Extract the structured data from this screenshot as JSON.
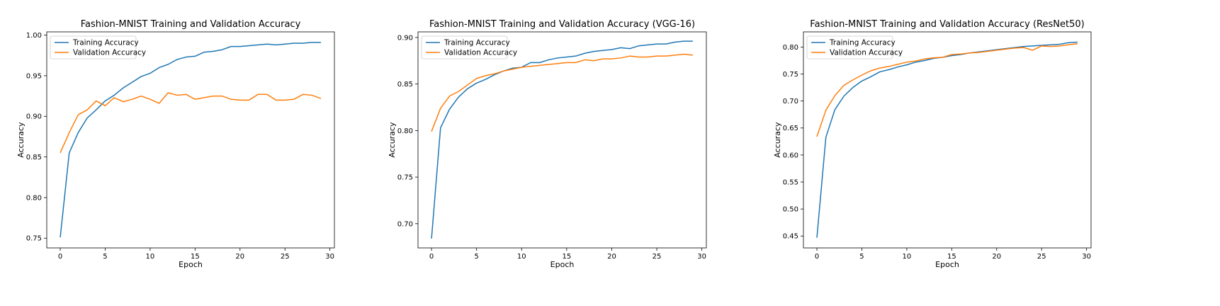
{
  "colors": {
    "training": "#1f77b4",
    "validation": "#ff7f0e"
  },
  "chart_data": [
    {
      "type": "line",
      "title": "Fashion-MNIST Training and Validation Accuracy",
      "xlabel": "Epoch",
      "ylabel": "Accuracy",
      "xlim": [
        -1.5,
        30.5
      ],
      "ylim": [
        0.738,
        1.004
      ],
      "xticks": [
        0,
        5,
        10,
        15,
        20,
        25,
        30
      ],
      "yticks": [
        0.75,
        0.8,
        0.85,
        0.9,
        0.95,
        1.0
      ],
      "ytick_labels": [
        "0.75",
        "0.80",
        "0.85",
        "0.90",
        "0.95",
        "1.00"
      ],
      "legend_position": "top-left",
      "x": [
        0,
        1,
        2,
        3,
        4,
        5,
        6,
        7,
        8,
        9,
        10,
        11,
        12,
        13,
        14,
        15,
        16,
        17,
        18,
        19,
        20,
        21,
        22,
        23,
        24,
        25,
        26,
        27,
        28,
        29
      ],
      "series": [
        {
          "name": "Training Accuracy",
          "color_key": "training",
          "values": [
            0.751,
            0.855,
            0.88,
            0.898,
            0.908,
            0.919,
            0.926,
            0.935,
            0.942,
            0.949,
            0.953,
            0.96,
            0.964,
            0.97,
            0.973,
            0.974,
            0.979,
            0.98,
            0.982,
            0.986,
            0.986,
            0.987,
            0.988,
            0.989,
            0.988,
            0.989,
            0.99,
            0.99,
            0.991,
            0.991
          ]
        },
        {
          "name": "Validation Accuracy",
          "color_key": "validation",
          "values": [
            0.855,
            0.88,
            0.902,
            0.908,
            0.919,
            0.913,
            0.923,
            0.918,
            0.921,
            0.925,
            0.921,
            0.916,
            0.929,
            0.926,
            0.927,
            0.921,
            0.923,
            0.925,
            0.925,
            0.921,
            0.92,
            0.92,
            0.927,
            0.927,
            0.92,
            0.92,
            0.921,
            0.927,
            0.926,
            0.922
          ]
        }
      ]
    },
    {
      "type": "line",
      "title": "Fashion-MNIST Training and Validation Accuracy (VGG-16)",
      "xlabel": "Epoch",
      "ylabel": "Accuracy",
      "xlim": [
        -1.5,
        30.5
      ],
      "ylim": [
        0.674,
        0.906
      ],
      "xticks": [
        0,
        5,
        10,
        15,
        20,
        25,
        30
      ],
      "yticks": [
        0.7,
        0.75,
        0.8,
        0.85,
        0.9
      ],
      "ytick_labels": [
        "0.70",
        "0.75",
        "0.80",
        "0.85",
        "0.90"
      ],
      "legend_position": "top-left",
      "x": [
        0,
        1,
        2,
        3,
        4,
        5,
        6,
        7,
        8,
        9,
        10,
        11,
        12,
        13,
        14,
        15,
        16,
        17,
        18,
        19,
        20,
        21,
        22,
        23,
        24,
        25,
        26,
        27,
        28,
        29
      ],
      "series": [
        {
          "name": "Training Accuracy",
          "color_key": "training",
          "values": [
            0.684,
            0.803,
            0.823,
            0.836,
            0.845,
            0.851,
            0.855,
            0.86,
            0.864,
            0.867,
            0.868,
            0.873,
            0.873,
            0.876,
            0.878,
            0.879,
            0.88,
            0.883,
            0.885,
            0.886,
            0.887,
            0.889,
            0.888,
            0.891,
            0.892,
            0.893,
            0.893,
            0.895,
            0.896,
            0.896
          ]
        },
        {
          "name": "Validation Accuracy",
          "color_key": "validation",
          "values": [
            0.799,
            0.824,
            0.837,
            0.842,
            0.849,
            0.856,
            0.859,
            0.861,
            0.864,
            0.866,
            0.868,
            0.869,
            0.87,
            0.871,
            0.872,
            0.873,
            0.873,
            0.876,
            0.875,
            0.877,
            0.877,
            0.878,
            0.88,
            0.879,
            0.879,
            0.88,
            0.88,
            0.881,
            0.882,
            0.881
          ]
        }
      ]
    },
    {
      "type": "line",
      "title": "Fashion-MNIST Training and Validation Accuracy (ResNet50)",
      "xlabel": "Epoch",
      "ylabel": "Accuracy",
      "xlim": [
        -1.5,
        30.5
      ],
      "ylim": [
        0.428,
        0.828
      ],
      "xticks": [
        0,
        5,
        10,
        15,
        20,
        25,
        30
      ],
      "yticks": [
        0.45,
        0.5,
        0.55,
        0.6,
        0.65,
        0.7,
        0.75,
        0.8
      ],
      "ytick_labels": [
        "0.45",
        "0.50",
        "0.55",
        "0.60",
        "0.65",
        "0.70",
        "0.75",
        "0.80"
      ],
      "legend_position": "top-left",
      "x": [
        0,
        1,
        2,
        3,
        4,
        5,
        6,
        7,
        8,
        9,
        10,
        11,
        12,
        13,
        14,
        15,
        16,
        17,
        18,
        19,
        20,
        21,
        22,
        23,
        24,
        25,
        26,
        27,
        28,
        29
      ],
      "series": [
        {
          "name": "Training Accuracy",
          "color_key": "training",
          "values": [
            0.447,
            0.633,
            0.684,
            0.709,
            0.725,
            0.737,
            0.745,
            0.754,
            0.758,
            0.763,
            0.767,
            0.772,
            0.775,
            0.779,
            0.781,
            0.784,
            0.786,
            0.789,
            0.791,
            0.793,
            0.795,
            0.797,
            0.799,
            0.801,
            0.802,
            0.803,
            0.804,
            0.805,
            0.808,
            0.809
          ]
        },
        {
          "name": "Validation Accuracy",
          "color_key": "validation",
          "values": [
            0.634,
            0.683,
            0.71,
            0.729,
            0.739,
            0.748,
            0.756,
            0.761,
            0.764,
            0.768,
            0.772,
            0.774,
            0.778,
            0.78,
            0.781,
            0.786,
            0.787,
            0.789,
            0.79,
            0.792,
            0.794,
            0.796,
            0.798,
            0.799,
            0.794,
            0.802,
            0.801,
            0.802,
            0.804,
            0.806
          ]
        }
      ]
    }
  ]
}
